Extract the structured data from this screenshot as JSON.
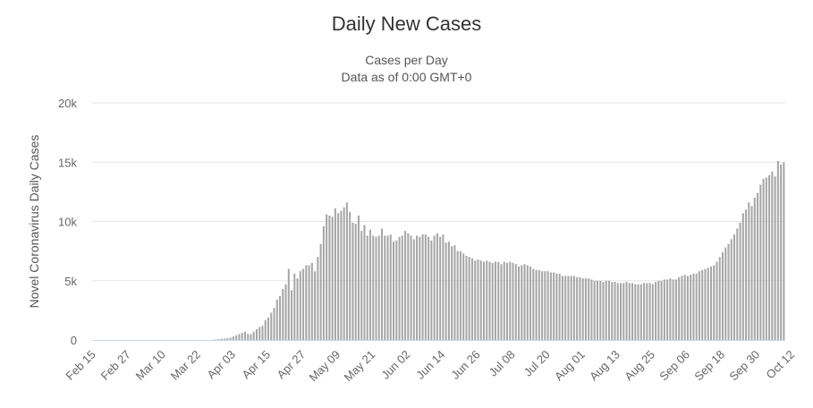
{
  "chart_data": {
    "type": "bar",
    "title": "Daily New Cases",
    "subtitle": [
      "Cases per Day",
      "Data as of 0:00 GMT+0"
    ],
    "xlabel": "",
    "ylabel": "Novel Coronavirus Daily Cases",
    "ylim": [
      0,
      20000
    ],
    "yticks": [
      0,
      5000,
      10000,
      15000,
      20000
    ],
    "ytick_labels": [
      "0",
      "5k",
      "10k",
      "15k",
      "20k"
    ],
    "grid": true,
    "x_tick_labels": [
      "Feb 15",
      "Feb 27",
      "Mar 10",
      "Mar 22",
      "Apr 03",
      "Apr 15",
      "Apr 27",
      "May 09",
      "May 21",
      "Jun 02",
      "Jun 14",
      "Jun 26",
      "Jul 08",
      "Jul 20",
      "Aug 01",
      "Aug 13",
      "Aug 25",
      "Sep 06",
      "Sep 18",
      "Sep 30",
      "Oct 12"
    ],
    "tick_step_days": 12,
    "bar_color": "#a6a6a6",
    "values": [
      0,
      0,
      0,
      0,
      0,
      0,
      0,
      0,
      0,
      0,
      0,
      0,
      0,
      0,
      0,
      0,
      0,
      0,
      0,
      0,
      0,
      0,
      0,
      0,
      0,
      0,
      0,
      0,
      0,
      0,
      0,
      0,
      0,
      0,
      0,
      0,
      0,
      0,
      0,
      0,
      0,
      20,
      50,
      80,
      100,
      120,
      150,
      200,
      300,
      400,
      500,
      600,
      700,
      500,
      500,
      700,
      900,
      1100,
      1200,
      1700,
      1900,
      2300,
      2700,
      3400,
      3700,
      4300,
      4700,
      6000,
      4200,
      5600,
      5200,
      5800,
      6000,
      6300,
      6300,
      6500,
      5800,
      7000,
      8100,
      9600,
      10600,
      10500,
      10400,
      11100,
      10700,
      10900,
      11200,
      11600,
      10800,
      9900,
      9800,
      10500,
      9200,
      9700,
      8800,
      9300,
      8800,
      8700,
      8800,
      9400,
      8800,
      8800,
      8900,
      8300,
      8400,
      8700,
      8800,
      9200,
      9000,
      8800,
      8500,
      8800,
      8700,
      8900,
      8900,
      8700,
      8400,
      8800,
      9000,
      8700,
      8900,
      8200,
      8300,
      7900,
      8000,
      7500,
      7500,
      7300,
      7100,
      7000,
      6900,
      6700,
      6800,
      6700,
      6600,
      6700,
      6600,
      6500,
      6600,
      6600,
      6400,
      6600,
      6500,
      6600,
      6500,
      6400,
      6200,
      6300,
      6400,
      6300,
      6200,
      6000,
      5900,
      5900,
      5800,
      5800,
      5800,
      5700,
      5700,
      5600,
      5600,
      5400,
      5400,
      5400,
      5400,
      5400,
      5300,
      5300,
      5200,
      5200,
      5200,
      5100,
      5000,
      5000,
      5000,
      4900,
      5000,
      5000,
      4900,
      4900,
      4800,
      4800,
      4800,
      4900,
      4800,
      4800,
      4700,
      4700,
      4700,
      4800,
      4800,
      4800,
      4700,
      4900,
      5000,
      5000,
      5100,
      5100,
      5200,
      5100,
      5100,
      5300,
      5400,
      5500,
      5400,
      5500,
      5600,
      5600,
      5800,
      5900,
      6000,
      6100,
      6200,
      6300,
      6600,
      7000,
      7400,
      7800,
      8100,
      8500,
      8900,
      9400,
      9900,
      10700,
      11000,
      11600,
      11300,
      12000,
      12400,
      13100,
      13600,
      13700,
      13900,
      14200,
      13800,
      15100,
      14800,
      15000
    ]
  }
}
